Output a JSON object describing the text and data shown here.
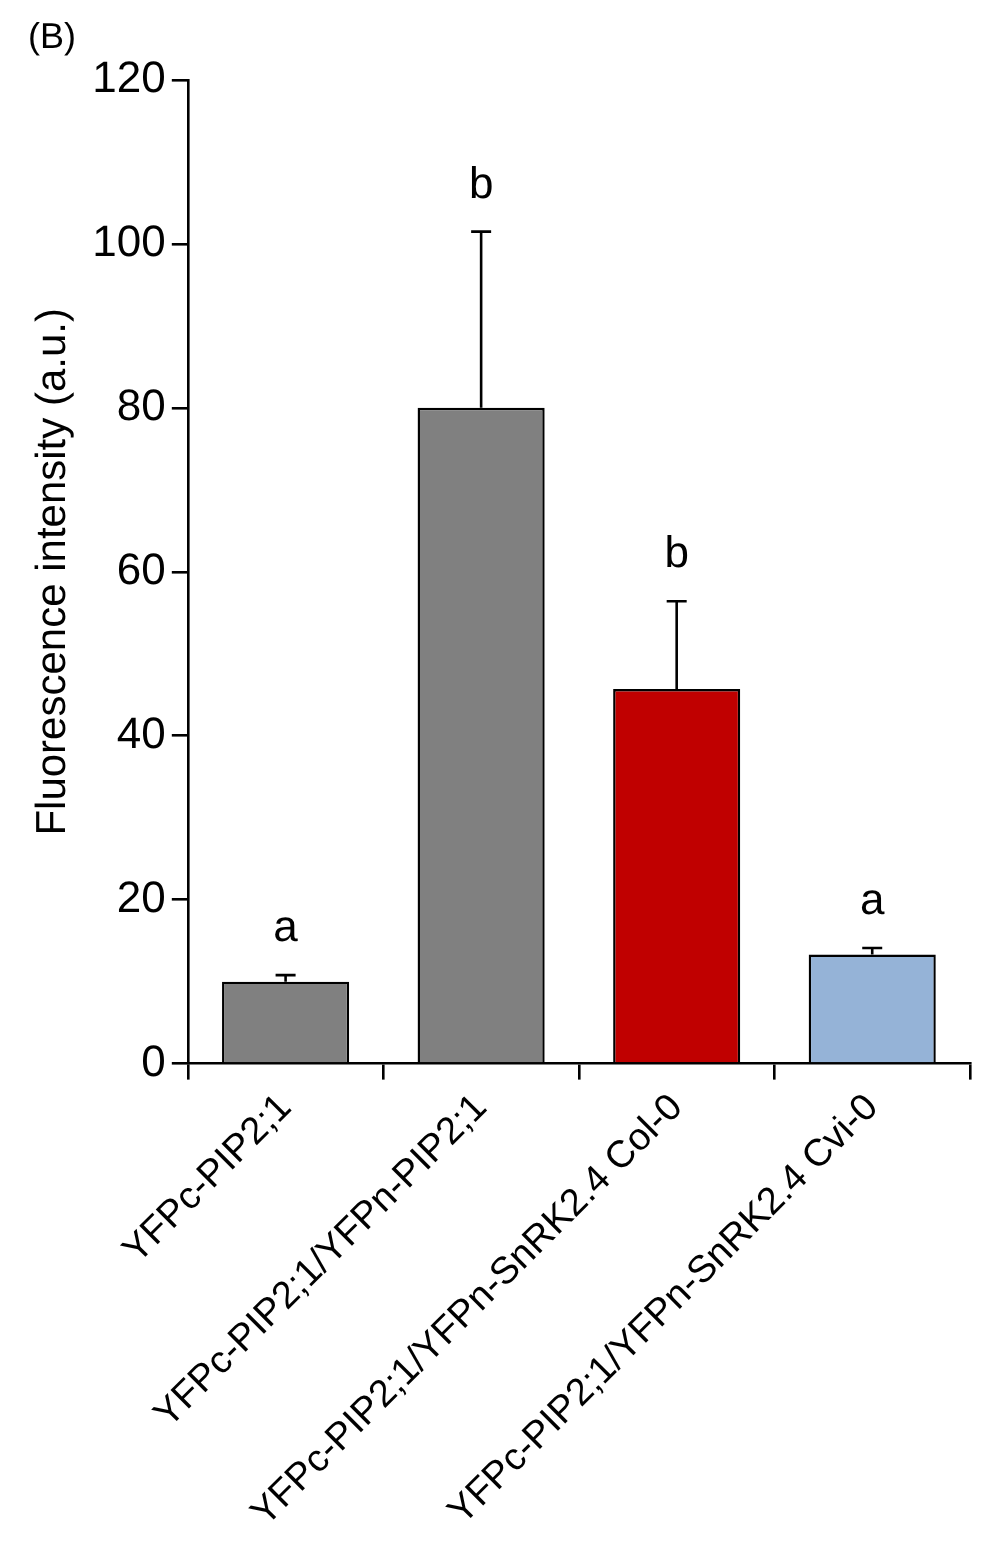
{
  "chart_data": {
    "type": "bar",
    "ylabel": "Fluorescence intensity (a.u.)",
    "categories": [
      "YFPc-PIP2;1",
      "YFPc-PIP2;1/YFPn-PIP2;1",
      "YFPc-PIP2;1/YFPn-SnRK2.4 Col-0",
      "YFPc-PIP2;1/YFPn-SnRK2.4 Cvi-0"
    ],
    "values": [
      10,
      80,
      45.7,
      13.3
    ],
    "colors": [
      "#808080",
      "#808080",
      "#c00000",
      "#95b3d7"
    ],
    "errors": [
      [
        10,
        10.8
      ],
      [
        80,
        101.5
      ],
      [
        45.7,
        56.4
      ],
      [
        13.3,
        14.1
      ]
    ],
    "ylim": [
      0,
      120
    ],
    "yticks": [
      0,
      20,
      40,
      60,
      80,
      100,
      120
    ],
    "grid": false,
    "legend": false,
    "annotations": [
      "(B)",
      {
        "text": "a",
        "x": "YFPc-PIP2;1",
        "y": 10.8
      },
      {
        "text": "b",
        "x": "YFPc-PIP2;1/YFPn-PIP2;1",
        "y": 101.5
      },
      {
        "text": "b",
        "x": "YFPc-PIP2;1/YFPn-SnRK2.4 Col-0",
        "y": 56.4
      },
      {
        "text": "a",
        "x": "YFPc-PIP2;1/YFPn-SnRK2.4 Cvi-0",
        "y": 14.1
      }
    ]
  }
}
